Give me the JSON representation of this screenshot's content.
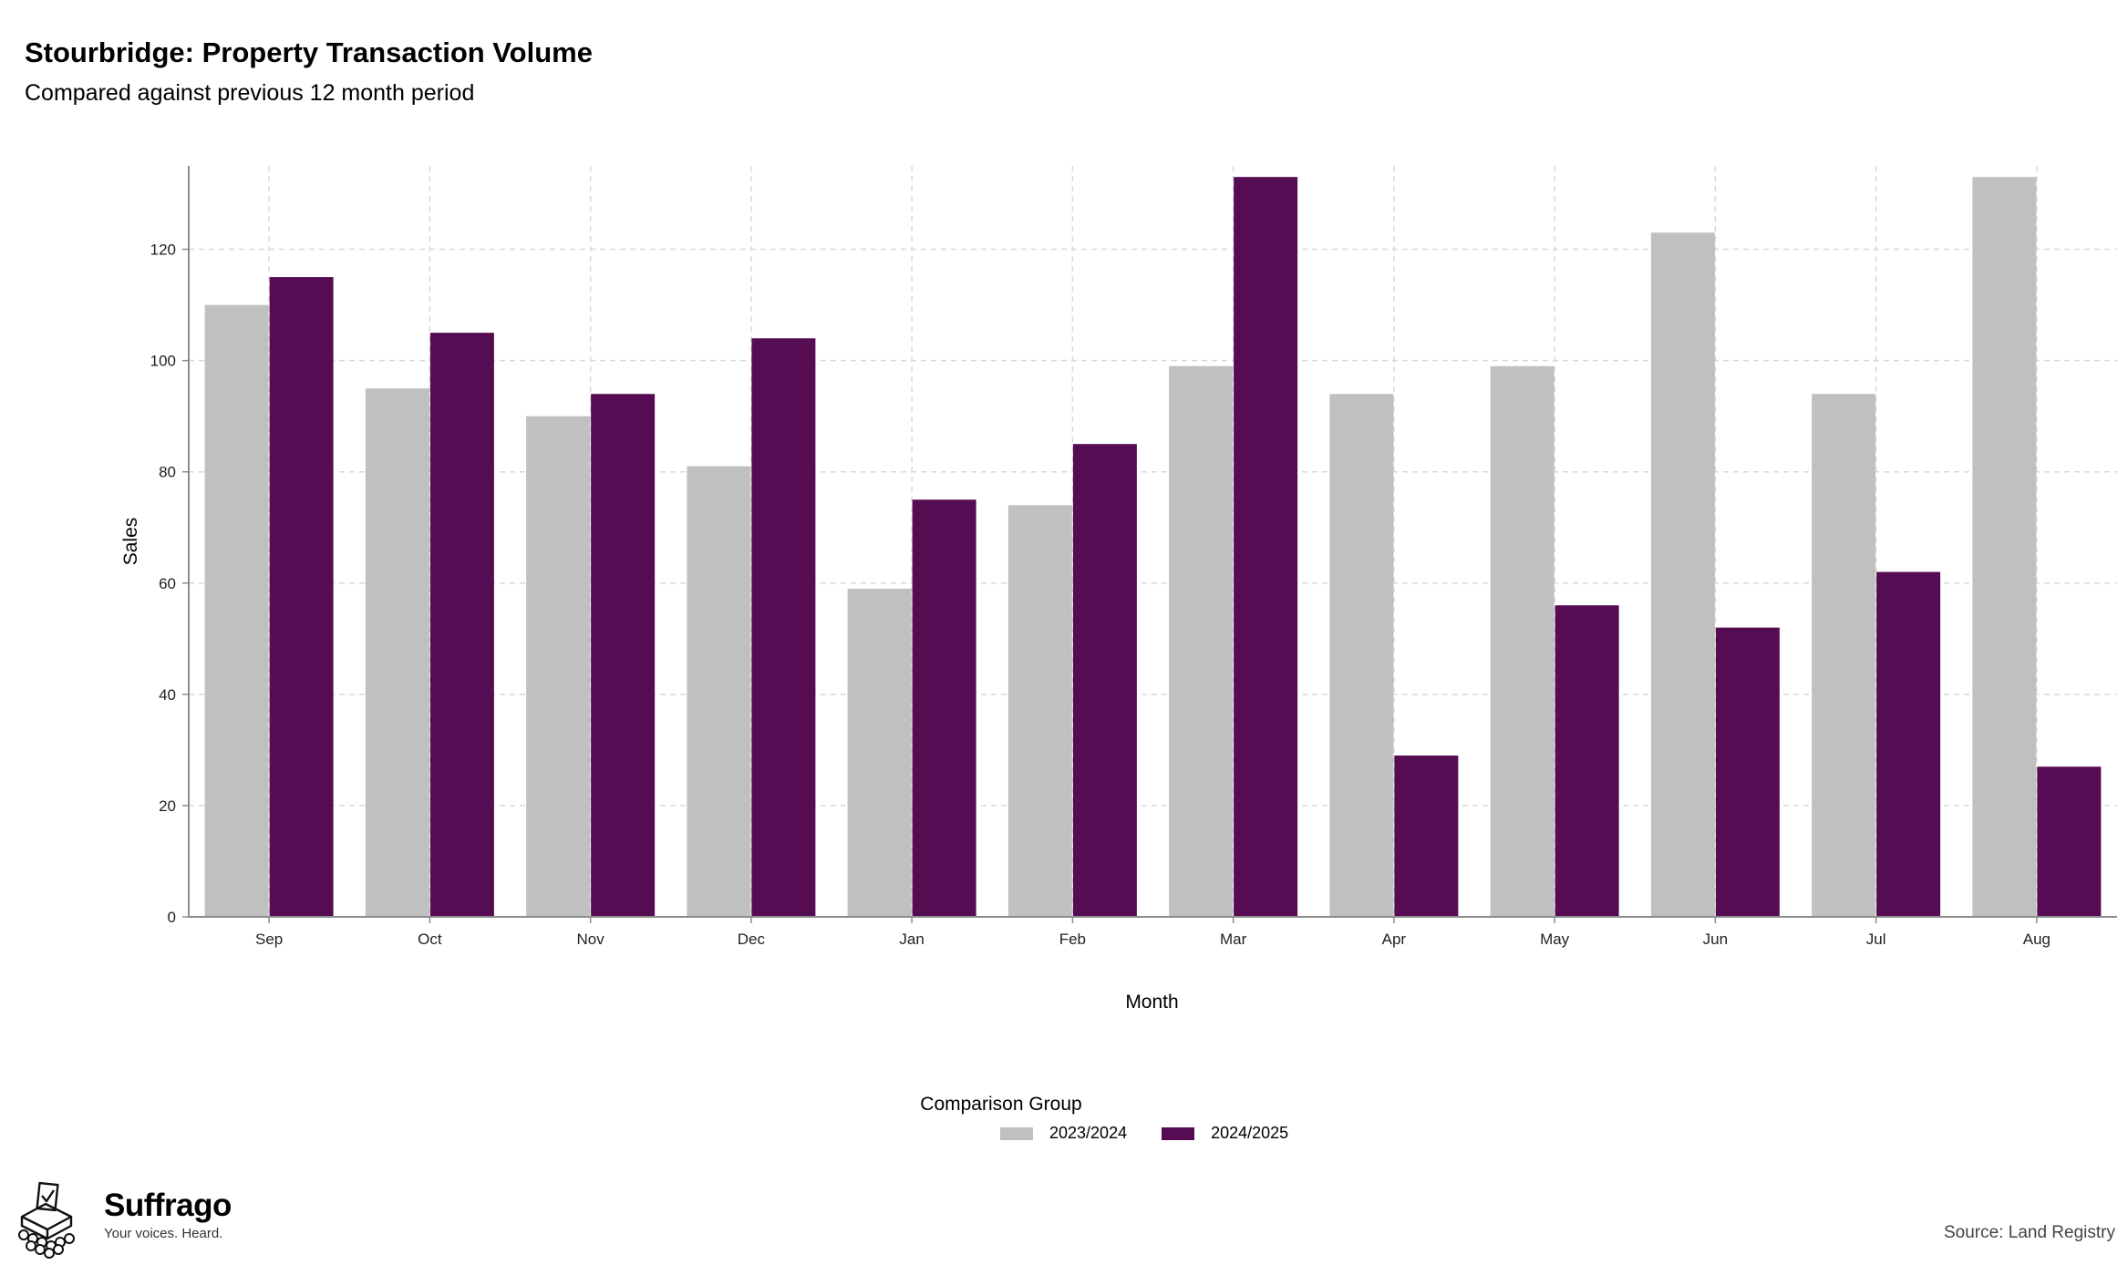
{
  "title": "Stourbridge: Property Transaction Volume",
  "subtitle": "Compared against previous 12 month period",
  "legend": {
    "title": "Comparison Group"
  },
  "brand": {
    "name": "Suffrago",
    "tagline": "Your voices. Heard."
  },
  "source": "Source: Land Registry",
  "colors": {
    "series1": "#c0c0c0",
    "series2": "#560c53",
    "grid": "#d9d9d9",
    "axis": "#8c8c8c"
  },
  "chart_data": {
    "type": "bar",
    "xlabel": "Month",
    "ylabel": "Sales",
    "ylim": [
      0,
      135
    ],
    "yticks": [
      0,
      20,
      40,
      60,
      80,
      100,
      120
    ],
    "grid": true,
    "legend_position": "bottom",
    "categories": [
      "Sep",
      "Oct",
      "Nov",
      "Dec",
      "Jan",
      "Feb",
      "Mar",
      "Apr",
      "May",
      "Jun",
      "Jul",
      "Aug"
    ],
    "series": [
      {
        "name": "2023/2024",
        "values": [
          110,
          95,
          90,
          81,
          59,
          74,
          99,
          94,
          99,
          123,
          94,
          133
        ]
      },
      {
        "name": "2024/2025",
        "values": [
          115,
          105,
          94,
          104,
          75,
          85,
          133,
          29,
          56,
          52,
          62,
          27
        ]
      }
    ]
  }
}
